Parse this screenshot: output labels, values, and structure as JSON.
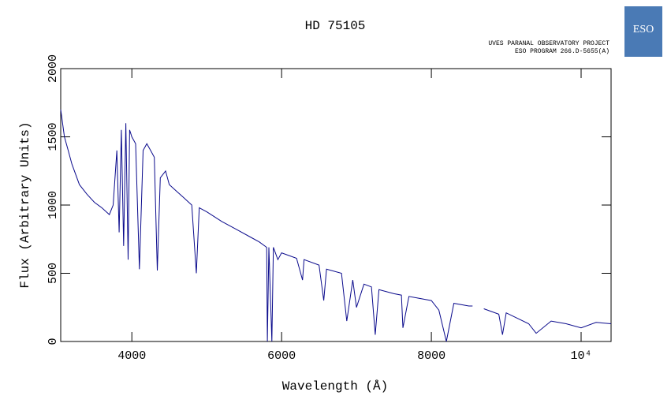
{
  "chart_data": {
    "type": "line",
    "title": "HD 75105",
    "subtitle": [
      "UVES PARANAL OBSERVATORY PROJECT",
      "ESO PROGRAM 266.D-5655(A)"
    ],
    "logo": "ESO",
    "x_label": "Wavelength (Å)",
    "y_label": "Flux (Arbitrary Units)",
    "xlim": [
      3050,
      10400
    ],
    "ylim": [
      0,
      2000
    ],
    "xticks": [
      4000,
      6000,
      8000,
      {
        "value": 10000,
        "label": "10⁴"
      }
    ],
    "yticks": [
      0,
      500,
      1000,
      1500,
      2000
    ],
    "series": [
      {
        "name": "HD 75105",
        "color": "#0a0a8c",
        "x": [
          3050,
          3100,
          3150,
          3200,
          3300,
          3400,
          3500,
          3600,
          3700,
          3750,
          3800,
          3830,
          3860,
          3890,
          3920,
          3950,
          3970,
          4000,
          4050,
          4101,
          4150,
          4200,
          4250,
          4300,
          4340,
          4380,
          4450,
          4500,
          4600,
          4700,
          4800,
          4861,
          4900,
          5000,
          5200,
          5400,
          5600,
          5700,
          5800,
          5810,
          5830,
          5870,
          5890,
          5950,
          6000,
          6200,
          6280,
          6300,
          6500,
          6563,
          6600,
          6800,
          6870,
          6950,
          7000,
          7100,
          7200,
          7250,
          7300,
          7500,
          7600,
          7620,
          7700,
          7800,
          8000,
          8100,
          8200,
          8300,
          8500,
          8550,
          8600,
          8700,
          8900,
          8950,
          9000,
          9300,
          9400,
          9600,
          9800,
          10000,
          10200,
          10400
        ],
        "values": [
          1700,
          1500,
          1400,
          1300,
          1150,
          1080,
          1020,
          980,
          930,
          1000,
          1400,
          800,
          1550,
          700,
          1600,
          600,
          1550,
          1500,
          1450,
          530,
          1400,
          1450,
          1400,
          1350,
          520,
          1200,
          1250,
          1150,
          1100,
          1050,
          1000,
          500,
          980,
          950,
          880,
          820,
          760,
          730,
          690,
          0,
          690,
          0,
          690,
          600,
          650,
          610,
          450,
          600,
          560,
          300,
          530,
          500,
          150,
          450,
          250,
          420,
          400,
          50,
          380,
          350,
          340,
          100,
          330,
          320,
          300,
          230,
          0,
          280,
          260,
          260,
          null,
          240,
          200,
          50,
          210,
          130,
          60,
          150,
          130,
          100,
          140,
          130
        ]
      }
    ]
  }
}
